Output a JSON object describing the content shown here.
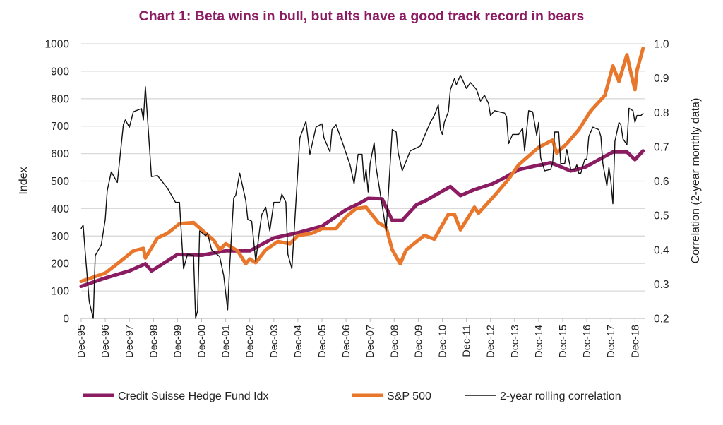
{
  "chart_data": {
    "type": "line",
    "title": "Chart 1: Beta wins in bull, but alts have a good track record in bears",
    "title_color": "#8B1C62",
    "ylabel": "Index",
    "y2label": "Correlation (2-year monthly data)",
    "ylim": [
      0,
      1000
    ],
    "y2lim": [
      0.2,
      1.0
    ],
    "yticks": [
      "0",
      "100",
      "200",
      "300",
      "400",
      "500",
      "600",
      "700",
      "800",
      "900",
      "1000"
    ],
    "y2ticks": [
      "0.2",
      "0.3",
      "0.4",
      "0.5",
      "0.6",
      "0.7",
      "0.8",
      "0.9",
      "1.0"
    ],
    "xticks": [
      "Dec-95",
      "Dec-96",
      "Dec-97",
      "Dec-98",
      "Dec-99",
      "Dec-00",
      "Dec-01",
      "Dec-02",
      "Dec-03",
      "Dec-04",
      "Dec-05",
      "Dec-06",
      "Dec-07",
      "Dec-08",
      "Dec-09",
      "Dec-10",
      "Dec-11",
      "Dec-12",
      "Dec-13",
      "Dec-14",
      "Dec-15",
      "Dec-16",
      "Dec-17",
      "Dec-18"
    ],
    "grid": true,
    "legend": "bottom",
    "series": [
      {
        "name": "Credit Suisse Hedge Fund Idx",
        "axis": "left",
        "color": "#8B1C62",
        "points": [
          [
            "1995-12",
            117
          ],
          [
            "1996-12",
            147
          ],
          [
            "1997-12",
            173
          ],
          [
            "1998-08",
            199
          ],
          [
            "1998-11",
            173
          ],
          [
            "1998-12",
            177
          ],
          [
            "1999-12",
            233
          ],
          [
            "2000-12",
            230
          ],
          [
            "2001-12",
            246
          ],
          [
            "2002-12",
            246
          ],
          [
            "2003-12",
            293
          ],
          [
            "2004-12",
            312
          ],
          [
            "2005-12",
            336
          ],
          [
            "2006-12",
            396
          ],
          [
            "2007-07",
            420
          ],
          [
            "2007-11",
            437
          ],
          [
            "2008-06",
            435
          ],
          [
            "2008-11",
            357
          ],
          [
            "2009-04",
            357
          ],
          [
            "2009-11",
            413
          ],
          [
            "2010-04",
            430
          ],
          [
            "2011-04",
            480
          ],
          [
            "2011-09",
            447
          ],
          [
            "2012-04",
            469
          ],
          [
            "2013-01",
            490
          ],
          [
            "2013-07",
            512
          ],
          [
            "2014-02",
            542
          ],
          [
            "2015-06",
            567
          ],
          [
            "2016-04",
            537
          ],
          [
            "2016-11",
            550
          ],
          [
            "2018-01",
            606
          ],
          [
            "2018-08",
            606
          ],
          [
            "2018-12",
            578
          ],
          [
            "2019-04",
            610
          ]
        ]
      },
      {
        "name": "S&P 500",
        "axis": "left",
        "color": "#E8762B",
        "points": [
          [
            "1995-12",
            135
          ],
          [
            "1996-12",
            165
          ],
          [
            "1997-06",
            199
          ],
          [
            "1998-02",
            246
          ],
          [
            "1998-07",
            255
          ],
          [
            "1998-08",
            220
          ],
          [
            "1999-02",
            293
          ],
          [
            "1999-07",
            310
          ],
          [
            "2000-01",
            345
          ],
          [
            "2000-08",
            349
          ],
          [
            "2001-02",
            310
          ],
          [
            "2001-06",
            285
          ],
          [
            "2001-09",
            250
          ],
          [
            "2001-12",
            272
          ],
          [
            "2002-06",
            246
          ],
          [
            "2002-10",
            199
          ],
          [
            "2002-12",
            216
          ],
          [
            "2003-03",
            203
          ],
          [
            "2003-08",
            250
          ],
          [
            "2004-02",
            280
          ],
          [
            "2004-08",
            272
          ],
          [
            "2004-12",
            302
          ],
          [
            "2005-07",
            310
          ],
          [
            "2005-12",
            327
          ],
          [
            "2006-07",
            327
          ],
          [
            "2006-12",
            370
          ],
          [
            "2007-05",
            400
          ],
          [
            "2007-10",
            405
          ],
          [
            "2008-04",
            349
          ],
          [
            "2008-08",
            332
          ],
          [
            "2008-11",
            250
          ],
          [
            "2009-03",
            199
          ],
          [
            "2009-06",
            250
          ],
          [
            "2010-03",
            302
          ],
          [
            "2010-08",
            289
          ],
          [
            "2011-03",
            379
          ],
          [
            "2011-06",
            379
          ],
          [
            "2011-09",
            323
          ],
          [
            "2012-04",
            405
          ],
          [
            "2012-06",
            383
          ],
          [
            "2013-02",
            447
          ],
          [
            "2013-09",
            507
          ],
          [
            "2014-02",
            559
          ],
          [
            "2014-12",
            623
          ],
          [
            "2015-07",
            649
          ],
          [
            "2015-09",
            602
          ],
          [
            "2016-02",
            636
          ],
          [
            "2016-08",
            687
          ],
          [
            "2017-02",
            756
          ],
          [
            "2017-09",
            812
          ],
          [
            "2018-01",
            919
          ],
          [
            "2018-04",
            863
          ],
          [
            "2018-08",
            960
          ],
          [
            "2018-10",
            893
          ],
          [
            "2018-12",
            833
          ],
          [
            "2019-01",
            902
          ],
          [
            "2019-04",
            983
          ]
        ]
      },
      {
        "name": "2-year rolling correlation",
        "axis": "right",
        "color": "#111111",
        "points": [
          [
            "1995-12",
            0.462
          ],
          [
            "1996-01",
            0.472
          ],
          [
            "1996-02",
            0.393
          ],
          [
            "1996-04",
            0.249
          ],
          [
            "1996-06",
            0.2
          ],
          [
            "1996-07",
            0.383
          ],
          [
            "1996-10",
            0.414
          ],
          [
            "1996-12",
            0.489
          ],
          [
            "1997-01",
            0.572
          ],
          [
            "1997-03",
            0.627
          ],
          [
            "1997-06",
            0.596
          ],
          [
            "1997-09",
            0.764
          ],
          [
            "1997-10",
            0.778
          ],
          [
            "1997-12",
            0.757
          ],
          [
            "1998-02",
            0.802
          ],
          [
            "1998-06",
            0.811
          ],
          [
            "1998-07",
            0.778
          ],
          [
            "1998-08",
            0.875
          ],
          [
            "1998-11",
            0.613
          ],
          [
            "1999-02",
            0.616
          ],
          [
            "1999-07",
            0.579
          ],
          [
            "1999-11",
            0.538
          ],
          [
            "2000-01",
            0.538
          ],
          [
            "2000-03",
            0.345
          ],
          [
            "2000-05",
            0.387
          ],
          [
            "2000-08",
            0.383
          ],
          [
            "2000-09",
            0.2
          ],
          [
            "2000-10",
            0.222
          ],
          [
            "2000-11",
            0.455
          ],
          [
            "2001-02",
            0.441
          ],
          [
            "2001-03",
            0.448
          ],
          [
            "2001-05",
            0.4
          ],
          [
            "2001-09",
            0.38
          ],
          [
            "2001-11",
            0.325
          ],
          [
            "2002-01",
            0.225
          ],
          [
            "2002-02",
            0.352
          ],
          [
            "2002-04",
            0.551
          ],
          [
            "2002-05",
            0.558
          ],
          [
            "2002-07",
            0.623
          ],
          [
            "2002-10",
            0.544
          ],
          [
            "2002-11",
            0.489
          ],
          [
            "2003-01",
            0.483
          ],
          [
            "2003-03",
            0.366
          ],
          [
            "2003-05",
            0.462
          ],
          [
            "2003-06",
            0.503
          ],
          [
            "2003-08",
            0.524
          ],
          [
            "2003-10",
            0.455
          ],
          [
            "2003-12",
            0.538
          ],
          [
            "2004-03",
            0.538
          ],
          [
            "2004-04",
            0.562
          ],
          [
            "2004-06",
            0.538
          ],
          [
            "2004-07",
            0.387
          ],
          [
            "2004-09",
            0.345
          ],
          [
            "2004-11",
            0.538
          ],
          [
            "2005-01",
            0.726
          ],
          [
            "2005-04",
            0.774
          ],
          [
            "2005-06",
            0.678
          ],
          [
            "2005-09",
            0.757
          ],
          [
            "2005-12",
            0.767
          ],
          [
            "2006-01",
            0.726
          ],
          [
            "2006-04",
            0.685
          ],
          [
            "2006-05",
            0.75
          ],
          [
            "2006-07",
            0.764
          ],
          [
            "2006-10",
            0.716
          ],
          [
            "2007-02",
            0.647
          ],
          [
            "2007-04",
            0.592
          ],
          [
            "2007-06",
            0.678
          ],
          [
            "2007-08",
            0.678
          ],
          [
            "2007-09",
            0.596
          ],
          [
            "2007-10",
            0.634
          ],
          [
            "2007-11",
            0.568
          ],
          [
            "2007-12",
            0.651
          ],
          [
            "2008-02",
            0.712
          ],
          [
            "2008-03",
            0.64
          ],
          [
            "2008-08",
            0.455
          ],
          [
            "2008-11",
            0.75
          ],
          [
            "2009-01",
            0.743
          ],
          [
            "2009-02",
            0.682
          ],
          [
            "2009-04",
            0.63
          ],
          [
            "2009-08",
            0.688
          ],
          [
            "2010-01",
            0.702
          ],
          [
            "2010-03",
            0.73
          ],
          [
            "2010-06",
            0.771
          ],
          [
            "2010-08",
            0.791
          ],
          [
            "2010-10",
            0.822
          ],
          [
            "2010-11",
            0.75
          ],
          [
            "2010-12",
            0.736
          ],
          [
            "2011-01",
            0.771
          ],
          [
            "2011-03",
            0.802
          ],
          [
            "2011-04",
            0.867
          ],
          [
            "2011-06",
            0.898
          ],
          [
            "2011-07",
            0.881
          ],
          [
            "2011-09",
            0.908
          ],
          [
            "2011-12",
            0.87
          ],
          [
            "2012-02",
            0.887
          ],
          [
            "2012-05",
            0.867
          ],
          [
            "2012-07",
            0.833
          ],
          [
            "2012-09",
            0.85
          ],
          [
            "2012-11",
            0.826
          ],
          [
            "2012-12",
            0.791
          ],
          [
            "2013-02",
            0.805
          ],
          [
            "2013-07",
            0.798
          ],
          [
            "2013-08",
            0.788
          ],
          [
            "2013-09",
            0.709
          ],
          [
            "2013-11",
            0.736
          ],
          [
            "2014-02",
            0.736
          ],
          [
            "2014-04",
            0.754
          ],
          [
            "2014-05",
            0.688
          ],
          [
            "2014-07",
            0.805
          ],
          [
            "2014-09",
            0.802
          ],
          [
            "2014-11",
            0.733
          ],
          [
            "2014-12",
            0.771
          ],
          [
            "2015-01",
            0.668
          ],
          [
            "2015-03",
            0.63
          ],
          [
            "2015-06",
            0.634
          ],
          [
            "2015-07",
            0.654
          ],
          [
            "2015-08",
            0.743
          ],
          [
            "2015-10",
            0.743
          ],
          [
            "2015-11",
            0.651
          ],
          [
            "2016-01",
            0.651
          ],
          [
            "2016-02",
            0.692
          ],
          [
            "2016-04",
            0.634
          ],
          [
            "2016-06",
            0.634
          ],
          [
            "2016-07",
            0.647
          ],
          [
            "2016-08",
            0.623
          ],
          [
            "2016-09",
            0.623
          ],
          [
            "2016-11",
            0.664
          ],
          [
            "2016-12",
            0.664
          ],
          [
            "2017-01",
            0.73
          ],
          [
            "2017-03",
            0.757
          ],
          [
            "2017-06",
            0.75
          ],
          [
            "2017-07",
            0.73
          ],
          [
            "2017-08",
            0.651
          ],
          [
            "2017-10",
            0.586
          ],
          [
            "2017-11",
            0.64
          ],
          [
            "2017-12",
            0.599
          ],
          [
            "2018-01",
            0.534
          ],
          [
            "2018-02",
            0.716
          ],
          [
            "2018-04",
            0.771
          ],
          [
            "2018-05",
            0.764
          ],
          [
            "2018-06",
            0.723
          ],
          [
            "2018-08",
            0.706
          ],
          [
            "2018-09",
            0.812
          ],
          [
            "2018-11",
            0.805
          ],
          [
            "2018-12",
            0.771
          ],
          [
            "2019-01",
            0.791
          ],
          [
            "2019-03",
            0.791
          ],
          [
            "2019-04",
            0.797
          ]
        ]
      }
    ]
  }
}
